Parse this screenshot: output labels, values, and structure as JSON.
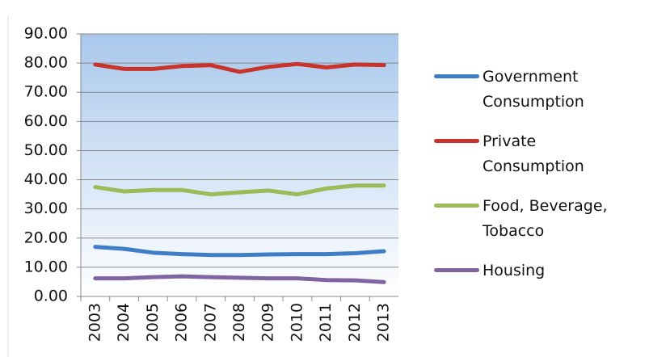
{
  "chart_data": {
    "type": "line",
    "categories": [
      "2003",
      "2004",
      "2005",
      "2006",
      "2007",
      "2008",
      "2009",
      "2010",
      "2011",
      "2012",
      "2013"
    ],
    "series": [
      {
        "name": "Government Consumption",
        "color": "#3f7dc6",
        "values": [
          17,
          16.3,
          15,
          14.5,
          14.2,
          14.2,
          14.4,
          14.5,
          14.5,
          14.8,
          15.5
        ]
      },
      {
        "name": "Private Consumption",
        "color": "#c8332c",
        "values": [
          79.5,
          78,
          78,
          79,
          79.3,
          77,
          78.7,
          79.7,
          78.5,
          79.5,
          79.3
        ]
      },
      {
        "name": "Food, Beverage, Tobacco",
        "color": "#9bbb59",
        "values": [
          37.5,
          36,
          36.5,
          36.5,
          35,
          35.7,
          36.3,
          35,
          37,
          38,
          38
        ]
      },
      {
        "name": "Housing",
        "color": "#8064a2",
        "values": [
          6.2,
          6.2,
          6.6,
          6.9,
          6.6,
          6.4,
          6.2,
          6.2,
          5.6,
          5.5,
          4.9
        ]
      }
    ],
    "ylim": [
      0,
      90
    ],
    "yticks": [
      {
        "value": 0,
        "label": "0.00"
      },
      {
        "value": 10,
        "label": "10.00"
      },
      {
        "value": 20,
        "label": "20.00"
      },
      {
        "value": 30,
        "label": "30.00"
      },
      {
        "value": 40,
        "label": "40.00"
      },
      {
        "value": 50,
        "label": "50.00"
      },
      {
        "value": 60,
        "label": "60.00"
      },
      {
        "value": 70,
        "label": "70.00"
      },
      {
        "value": 80,
        "label": "80.00"
      },
      {
        "value": 90,
        "label": "90.00"
      }
    ],
    "grid": true,
    "legend": "right"
  }
}
